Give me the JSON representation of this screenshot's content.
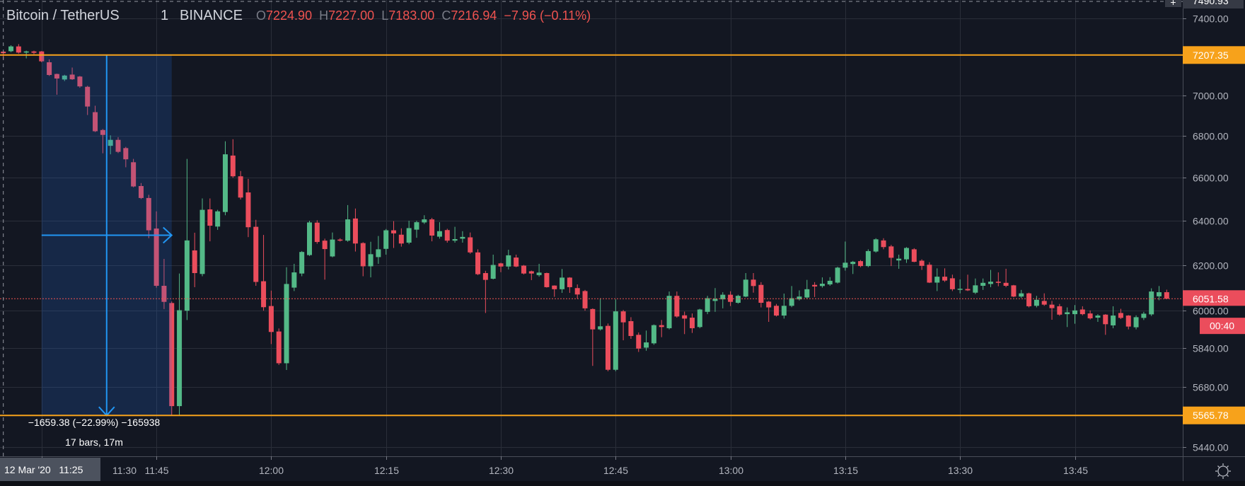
{
  "header": {
    "symbol": "Bitcoin / TetherUS",
    "interval": "1",
    "exchange": "BINANCE",
    "ohlc": {
      "o_key": "O",
      "o": "7224.90",
      "h_key": "H",
      "h": "7227.00",
      "l_key": "L",
      "l": "7183.00",
      "c_key": "C",
      "c": "7216.94",
      "change": "−7.96 (−0.11%)"
    }
  },
  "price_axis": {
    "crosshair_price": "7490.93",
    "ticks": [
      "7400.00",
      "7000.00",
      "6800.00",
      "6600.00",
      "6400.00",
      "6200.00",
      "6000.00",
      "5840.00",
      "5680.00",
      "5440.00"
    ],
    "last_price": "6051.58",
    "countdown": "00:40",
    "horizontal_line_upper": "7207.35",
    "horizontal_line_lower": "5565.78",
    "settings_icon": "gear-icon",
    "add_icon": "plus-icon"
  },
  "time_axis": {
    "crosshair_time": "12 Mar '20   11:25",
    "ticks": [
      "11:30",
      "11:45",
      "12:00",
      "12:15",
      "12:30",
      "12:45",
      "13:00",
      "13:15",
      "13:30",
      "13:45"
    ]
  },
  "measure": {
    "change_text": "−1659.38 (−22.99%) −165938",
    "range_text": "17 bars, 17m"
  },
  "colors": {
    "background": "#131722",
    "up": "#53b987",
    "down": "#eb4d5c",
    "horizontal_line": "#f7a21b",
    "measure": "#2196f3",
    "grid": "#2a2e39"
  },
  "chart_data": {
    "type": "candlestick",
    "interval": "1",
    "scale": "log",
    "grid": true,
    "ylim": [
      5400,
      7520
    ],
    "xticks": [
      "11:30",
      "11:45",
      "12:00",
      "12:15",
      "12:30",
      "12:45",
      "13:00",
      "13:15",
      "13:30",
      "13:45"
    ],
    "candles": [
      [
        7224.9,
        7227,
        7183,
        7216.94
      ],
      [
        7227,
        7258,
        7222,
        7252
      ],
      [
        7252,
        7264,
        7215,
        7220
      ],
      [
        7220,
        7230,
        7190,
        7226
      ],
      [
        7226,
        7230,
        7212,
        7219
      ],
      [
        7226,
        7228,
        7170,
        7175
      ],
      [
        7170,
        7185,
        7100,
        7105
      ],
      [
        7110,
        7112,
        7005,
        7087
      ],
      [
        7082,
        7106,
        7074,
        7102
      ],
      [
        7107,
        7143,
        7080,
        7083
      ],
      [
        7097,
        7100,
        7040,
        7047
      ],
      [
        7045,
        7050,
        6904,
        6946
      ],
      [
        6918,
        6950,
        6820,
        6824
      ],
      [
        6830,
        6835,
        6717,
        6806
      ],
      [
        6753,
        6804,
        6712,
        6782
      ],
      [
        6782,
        6795,
        6718,
        6724
      ],
      [
        6742,
        6748,
        6650,
        6688
      ],
      [
        6674,
        6690,
        6555,
        6559
      ],
      [
        6561,
        6575,
        6500,
        6505
      ],
      [
        6505,
        6520,
        6320,
        6356
      ],
      [
        6364,
        6443,
        6100,
        6108
      ],
      [
        6108,
        6227,
        6007,
        6038
      ],
      [
        6033,
        6040,
        5565.78,
        5603
      ],
      [
        5603,
        6162,
        5566,
        6002
      ],
      [
        6000,
        6690,
        5960,
        6310
      ],
      [
        6265,
        6345,
        6102,
        6164
      ],
      [
        6160,
        6503,
        6150,
        6450
      ],
      [
        6452,
        6503,
        6306,
        6377
      ],
      [
        6373,
        6450,
        6358,
        6443
      ],
      [
        6440,
        6775,
        6425,
        6712
      ],
      [
        6706,
        6785,
        6600,
        6607
      ],
      [
        6607,
        6632,
        6498,
        6507
      ],
      [
        6531,
        6595,
        6325,
        6370
      ],
      [
        6372,
        6404,
        6108,
        6125
      ],
      [
        6128,
        6335,
        6000,
        6015
      ],
      [
        6020,
        6087,
        5858,
        5909
      ],
      [
        5911,
        5924,
        5771,
        5778
      ],
      [
        5778,
        6190,
        5750,
        6116
      ],
      [
        6100,
        6205,
        6085,
        6167
      ],
      [
        6162,
        6262,
        6150,
        6258
      ],
      [
        6244,
        6400,
        6240,
        6392
      ],
      [
        6391,
        6402,
        6295,
        6303
      ],
      [
        6309,
        6318,
        6135,
        6271
      ],
      [
        6238,
        6346,
        6234,
        6314
      ],
      [
        6314,
        6320,
        6305,
        6309
      ],
      [
        6309,
        6472,
        6304,
        6406
      ],
      [
        6410,
        6456,
        6260,
        6296
      ],
      [
        6298,
        6302,
        6150,
        6194
      ],
      [
        6194,
        6304,
        6145,
        6248
      ],
      [
        6235,
        6330,
        6205,
        6270
      ],
      [
        6272,
        6362,
        6246,
        6356
      ],
      [
        6356,
        6398,
        6276,
        6342
      ],
      [
        6336,
        6365,
        6282,
        6296
      ],
      [
        6300,
        6400,
        6293,
        6366
      ],
      [
        6359,
        6400,
        6322,
        6393
      ],
      [
        6392,
        6425,
        6385,
        6406
      ],
      [
        6406,
        6413,
        6306,
        6332
      ],
      [
        6327,
        6393,
        6318,
        6352
      ],
      [
        6357,
        6363,
        6300,
        6309
      ],
      [
        6309,
        6372,
        6300,
        6316
      ],
      [
        6318,
        6352,
        6300,
        6326
      ],
      [
        6324,
        6346,
        6250,
        6256
      ],
      [
        6256,
        6270,
        6155,
        6159
      ],
      [
        6164,
        6174,
        5990,
        6134
      ],
      [
        6139,
        6246,
        6136,
        6200
      ],
      [
        6207,
        6210,
        6168,
        6193
      ],
      [
        6193,
        6268,
        6180,
        6243
      ],
      [
        6233,
        6246,
        6190,
        6193
      ],
      [
        6197,
        6200,
        6158,
        6162
      ],
      [
        6172,
        6175,
        6133,
        6162
      ],
      [
        6155,
        6205,
        6148,
        6166
      ],
      [
        6164,
        6166,
        6100,
        6102
      ],
      [
        6109,
        6110,
        6060,
        6093
      ],
      [
        6093,
        6182,
        6077,
        6144
      ],
      [
        6144,
        6146,
        6077,
        6102
      ],
      [
        6098,
        6114,
        6052,
        6070
      ],
      [
        6085,
        6090,
        6000,
        6010
      ],
      [
        6007,
        6010,
        5767,
        5920
      ],
      [
        5920,
        6054,
        5915,
        5933
      ],
      [
        5935,
        5945,
        5745,
        5751
      ],
      [
        5751,
        6049,
        5745,
        5997
      ],
      [
        5997,
        6003,
        5874,
        5950
      ],
      [
        5955,
        5972,
        5880,
        5892
      ],
      [
        5897,
        5907,
        5825,
        5839
      ],
      [
        5843,
        5915,
        5830,
        5865
      ],
      [
        5861,
        5941,
        5855,
        5938
      ],
      [
        5938,
        5960,
        5887,
        5930
      ],
      [
        5925,
        6083,
        5920,
        6064
      ],
      [
        6064,
        6083,
        5970,
        5975
      ],
      [
        5980,
        5996,
        5900,
        5966
      ],
      [
        5970,
        5988,
        5905,
        5925
      ],
      [
        5930,
        6008,
        5925,
        6005
      ],
      [
        5995,
        6064,
        5985,
        6054
      ],
      [
        6042,
        6098,
        5995,
        6051
      ],
      [
        6049,
        6080,
        6010,
        6069
      ],
      [
        6069,
        6084,
        6020,
        6038
      ],
      [
        6034,
        6069,
        6030,
        6064
      ],
      [
        6061,
        6164,
        6058,
        6135
      ],
      [
        6135,
        6164,
        6078,
        6107
      ],
      [
        6112,
        6124,
        6014,
        6034
      ],
      [
        6039,
        6042,
        5952,
        6014
      ],
      [
        6021,
        6029,
        5975,
        5979
      ],
      [
        5979,
        6074,
        5966,
        6021
      ],
      [
        6021,
        6107,
        6015,
        6054
      ],
      [
        6049,
        6088,
        6044,
        6061
      ],
      [
        6057,
        6134,
        6052,
        6093
      ],
      [
        6112,
        6124,
        6059,
        6105
      ],
      [
        6107,
        6145,
        6100,
        6117
      ],
      [
        6114,
        6146,
        6108,
        6130
      ],
      [
        6122,
        6192,
        6118,
        6188
      ],
      [
        6188,
        6305,
        6175,
        6210
      ],
      [
        6204,
        6218,
        6160,
        6214
      ],
      [
        6217,
        6222,
        6190,
        6195
      ],
      [
        6195,
        6270,
        6190,
        6262
      ],
      [
        6260,
        6320,
        6255,
        6315
      ],
      [
        6310,
        6320,
        6270,
        6280
      ],
      [
        6283,
        6290,
        6195,
        6232
      ],
      [
        6220,
        6246,
        6183,
        6228
      ],
      [
        6225,
        6280,
        6209,
        6276
      ],
      [
        6270,
        6275,
        6212,
        6214
      ],
      [
        6219,
        6225,
        6178,
        6196
      ],
      [
        6201,
        6212,
        6120,
        6122
      ],
      [
        6122,
        6185,
        6085,
        6148
      ],
      [
        6148,
        6185,
        6125,
        6131
      ],
      [
        6141,
        6157,
        6085,
        6093
      ],
      [
        6091,
        6136,
        6075,
        6095
      ],
      [
        6094,
        6157,
        6085,
        6088
      ],
      [
        6078,
        6140,
        6072,
        6110
      ],
      [
        6108,
        6140,
        6090,
        6121
      ],
      [
        6116,
        6178,
        6102,
        6126
      ],
      [
        6126,
        6167,
        6106,
        6121
      ],
      [
        6121,
        6183,
        6102,
        6108
      ],
      [
        6110,
        6112,
        6058,
        6061
      ],
      [
        6061,
        6090,
        6055,
        6075
      ],
      [
        6075,
        6078,
        6014,
        6019
      ],
      [
        6021,
        6064,
        6014,
        6047
      ],
      [
        6042,
        6075,
        6021,
        6026
      ],
      [
        6026,
        6042,
        5961,
        6011
      ],
      [
        6019,
        6029,
        5978,
        5983
      ],
      [
        5985,
        6014,
        5930,
        5993
      ],
      [
        5985,
        6024,
        5944,
        6001
      ],
      [
        6005,
        6019,
        5980,
        5985
      ],
      [
        5988,
        6001,
        5962,
        5967
      ],
      [
        5970,
        5985,
        5952,
        5979
      ],
      [
        5983,
        5985,
        5897,
        5942
      ],
      [
        5937,
        6019,
        5925,
        5979
      ],
      [
        5990,
        6008,
        5964,
        5969
      ],
      [
        5979,
        5981,
        5920,
        5932
      ],
      [
        5929,
        5980,
        5920,
        5972
      ],
      [
        5969,
        5995,
        5960,
        5987
      ],
      [
        5984,
        6097,
        5977,
        6083
      ],
      [
        6062,
        6107,
        6045,
        6080
      ],
      [
        6080,
        6091,
        6050,
        6051.58
      ]
    ]
  }
}
